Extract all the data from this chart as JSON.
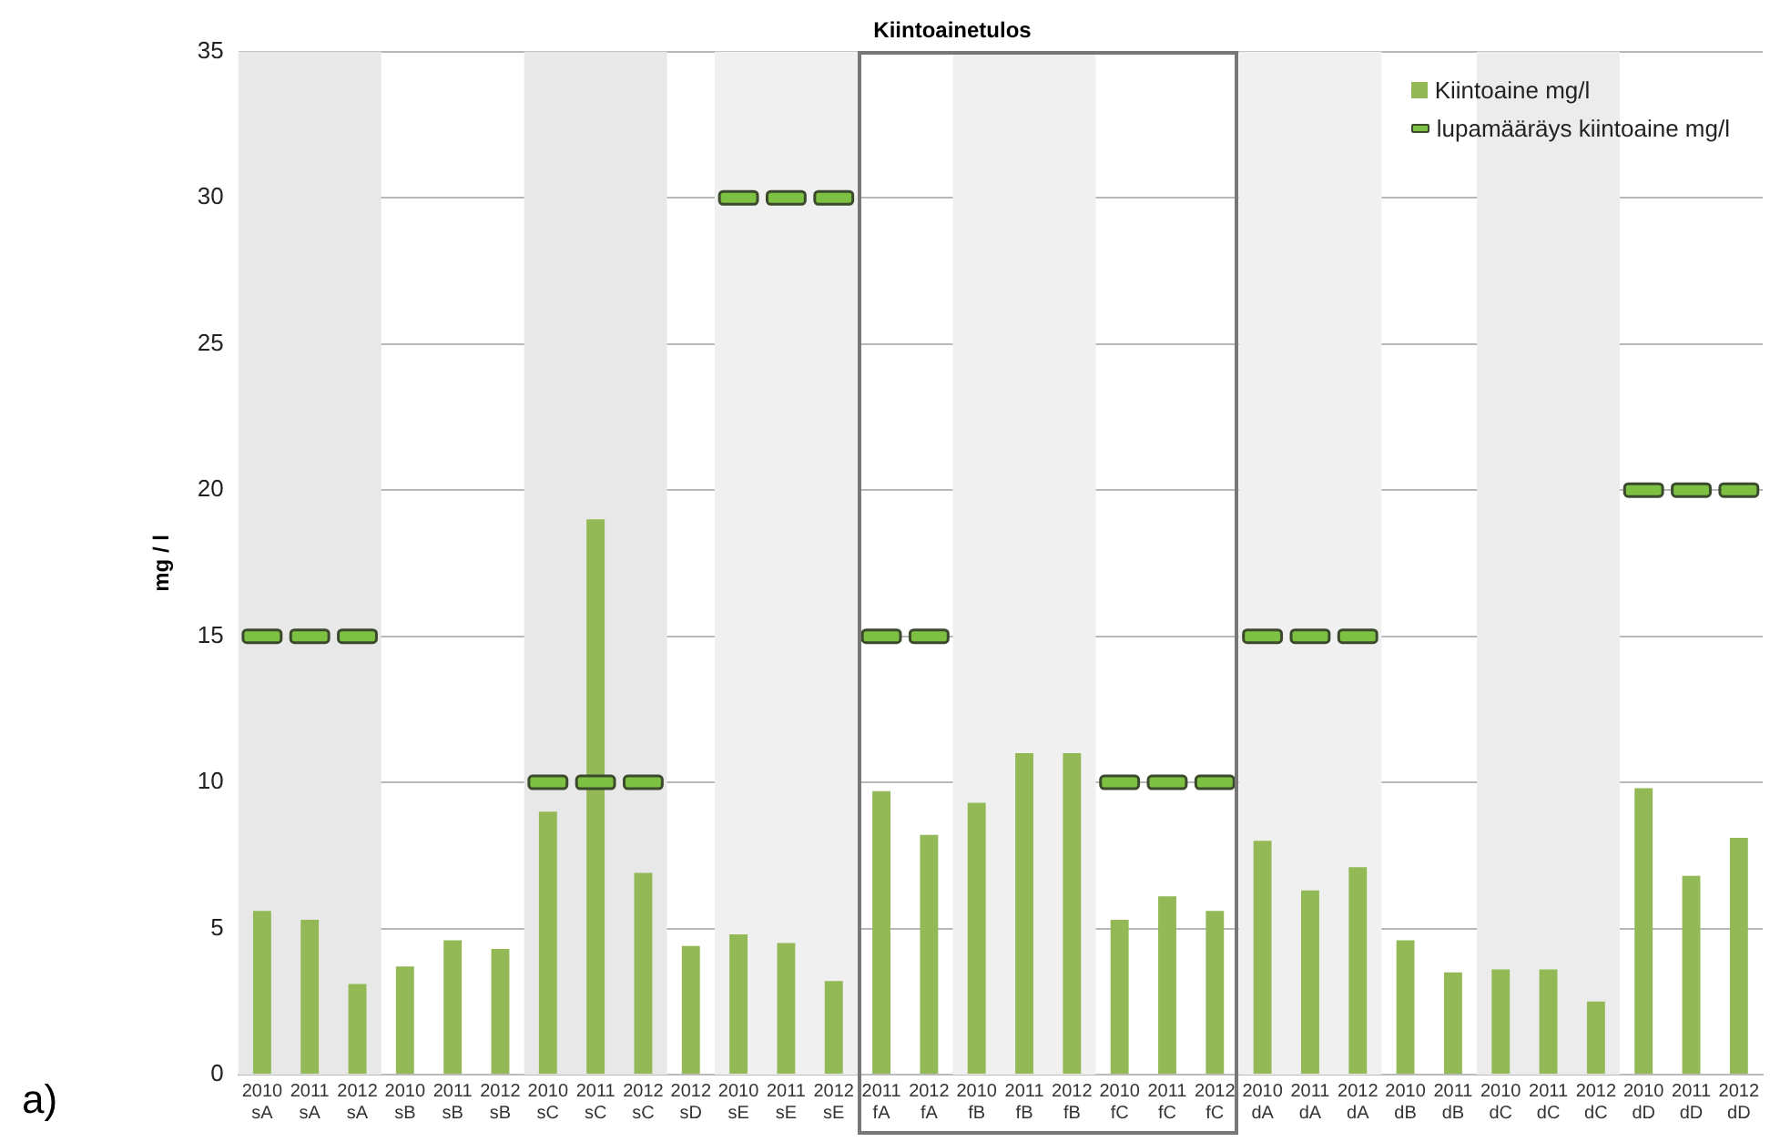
{
  "chart_data": {
    "type": "bar",
    "title": "Kiintoainetulos",
    "ylabel": "mg / l",
    "categories": [
      "2010\nsA",
      "2011\nsA",
      "2012\nsA",
      "2010\nsB",
      "2011\nsB",
      "2012\nsB",
      "2010\nsC",
      "2011\nsC",
      "2012\nsC",
      "2012\nsD",
      "2010\nsE",
      "2011\nsE",
      "2012\nsE",
      "2011\nfA",
      "2012\nfA",
      "2010\nfB",
      "2011\nfB",
      "2012\nfB",
      "2010\nfC",
      "2011\nfC",
      "2012\nfC",
      "2010\ndA",
      "2011\ndA",
      "2012\ndA",
      "2010\ndB",
      "2011\ndB",
      "2010\ndC",
      "2011\ndC",
      "2012\ndC",
      "2010\ndD",
      "2011\ndD",
      "2012\ndD"
    ],
    "series": [
      {
        "name": "Kiintoaine mg/l",
        "color": "#92b955",
        "values": [
          5.6,
          5.3,
          3.1,
          3.7,
          4.6,
          4.3,
          9.0,
          19.0,
          6.9,
          4.4,
          4.8,
          4.5,
          3.2,
          9.7,
          8.2,
          9.3,
          11.0,
          11.0,
          5.3,
          6.1,
          5.6,
          8.0,
          6.3,
          7.1,
          4.6,
          3.5,
          3.6,
          3.6,
          2.5,
          9.8,
          6.8,
          8.1
        ]
      },
      {
        "name": "lupamääräys kiintoaine mg/l",
        "type": "scatter",
        "marker": "square",
        "color": "#7dc142",
        "values": [
          15,
          15,
          15,
          null,
          null,
          null,
          10,
          10,
          10,
          null,
          30,
          30,
          30,
          15,
          15,
          null,
          null,
          null,
          10,
          10,
          10,
          15,
          15,
          15,
          null,
          null,
          null,
          null,
          null,
          20,
          20,
          20
        ]
      }
    ],
    "ylim": [
      0,
      35
    ],
    "yticks": [
      0,
      5,
      10,
      15,
      20,
      25,
      30,
      35
    ],
    "grid": "y",
    "legend": "top right",
    "bands": [
      {
        "axis": "x",
        "from": "2010\nsA",
        "to": "2012\nsA",
        "color": "#e8e8e8"
      },
      {
        "axis": "x",
        "from": "2010\nsC",
        "to": "2012\nsC",
        "color": "#e8e8e8"
      },
      {
        "axis": "x",
        "from": "2010\nsE",
        "to": "2012\nsE",
        "color": "#f0f0f0"
      },
      {
        "axis": "x",
        "from": "2010\nfB",
        "to": "2012\nfB",
        "color": "#f0f0f0"
      },
      {
        "axis": "x",
        "from": "2010\ndA",
        "to": "2012\ndA",
        "color": "#f0f0f0"
      },
      {
        "axis": "x",
        "from": "2010\ndC",
        "to": "2012\ndC",
        "color": "#ececec"
      }
    ],
    "annotations": [
      "a)"
    ]
  }
}
